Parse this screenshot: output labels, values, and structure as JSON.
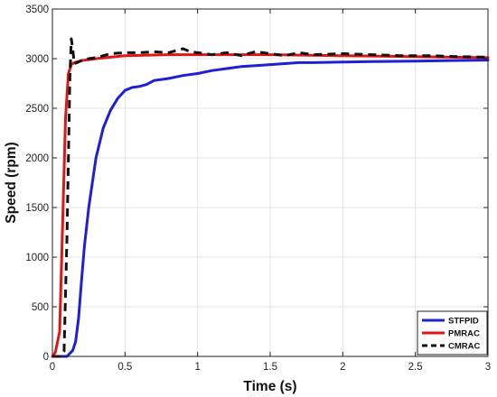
{
  "chart_data": {
    "type": "line",
    "title": "",
    "xlabel": "Time (s)",
    "ylabel": "Speed (rpm)",
    "xlim": [
      0,
      3
    ],
    "ylim": [
      0,
      3500
    ],
    "xticks": [
      0,
      0.5,
      1,
      1.5,
      2,
      2.5,
      3
    ],
    "xtick_labels": [
      "0",
      "0.5",
      "1",
      "1.5",
      "2",
      "2.5",
      "3"
    ],
    "yticks": [
      0,
      500,
      1000,
      1500,
      2000,
      2500,
      3000,
      3500
    ],
    "ytick_labels": [
      "0",
      "500",
      "1000",
      "1500",
      "2000",
      "2500",
      "3000",
      "3500"
    ],
    "grid": true,
    "legend_position": "bottom-right",
    "series": [
      {
        "name": "STFPID",
        "color": "#1f1fd6",
        "style": "solid",
        "x": [
          0,
          0.1,
          0.14,
          0.16,
          0.18,
          0.2,
          0.22,
          0.25,
          0.3,
          0.35,
          0.4,
          0.45,
          0.5,
          0.55,
          0.6,
          0.65,
          0.7,
          0.8,
          0.9,
          1.0,
          1.1,
          1.2,
          1.3,
          1.4,
          1.5,
          1.6,
          1.7,
          1.8,
          2.0,
          2.2,
          2.5,
          2.7,
          3.0
        ],
        "y": [
          0,
          0,
          60,
          150,
          380,
          750,
          1100,
          1500,
          2000,
          2300,
          2480,
          2600,
          2680,
          2710,
          2720,
          2740,
          2780,
          2800,
          2830,
          2850,
          2880,
          2900,
          2920,
          2930,
          2940,
          2950,
          2960,
          2960,
          2965,
          2970,
          2975,
          2980,
          2985
        ]
      },
      {
        "name": "PMRAC",
        "color": "#e01616",
        "style": "solid",
        "x": [
          0,
          0.02,
          0.05,
          0.07,
          0.09,
          0.11,
          0.13,
          0.15,
          0.2,
          0.3,
          0.5,
          0.8,
          1.0,
          1.5,
          2.0,
          2.5,
          3.0
        ],
        "y": [
          0,
          40,
          250,
          1300,
          2400,
          2850,
          2940,
          2960,
          2980,
          3000,
          3030,
          3040,
          3040,
          3040,
          3030,
          3020,
          3010
        ]
      },
      {
        "name": "CMRAC",
        "color": "#111111",
        "style": "dashed",
        "x": [
          0,
          0.05,
          0.08,
          0.1,
          0.12,
          0.13,
          0.14,
          0.15,
          0.17,
          0.2,
          0.25,
          0.3,
          0.4,
          0.5,
          0.6,
          0.7,
          0.8,
          0.85,
          0.9,
          0.95,
          1.0,
          1.1,
          1.2,
          1.3,
          1.4,
          1.5,
          1.6,
          1.7,
          1.8,
          2.0,
          2.2,
          2.4,
          2.6,
          2.8,
          3.0
        ],
        "y": [
          0,
          0,
          50,
          1200,
          2800,
          3200,
          3100,
          2950,
          2960,
          2980,
          3000,
          3010,
          3050,
          3060,
          3060,
          3070,
          3060,
          3080,
          3100,
          3070,
          3060,
          3040,
          3060,
          3030,
          3070,
          3050,
          3030,
          3060,
          3040,
          3050,
          3040,
          3030,
          3030,
          3020,
          3015
        ]
      }
    ]
  }
}
